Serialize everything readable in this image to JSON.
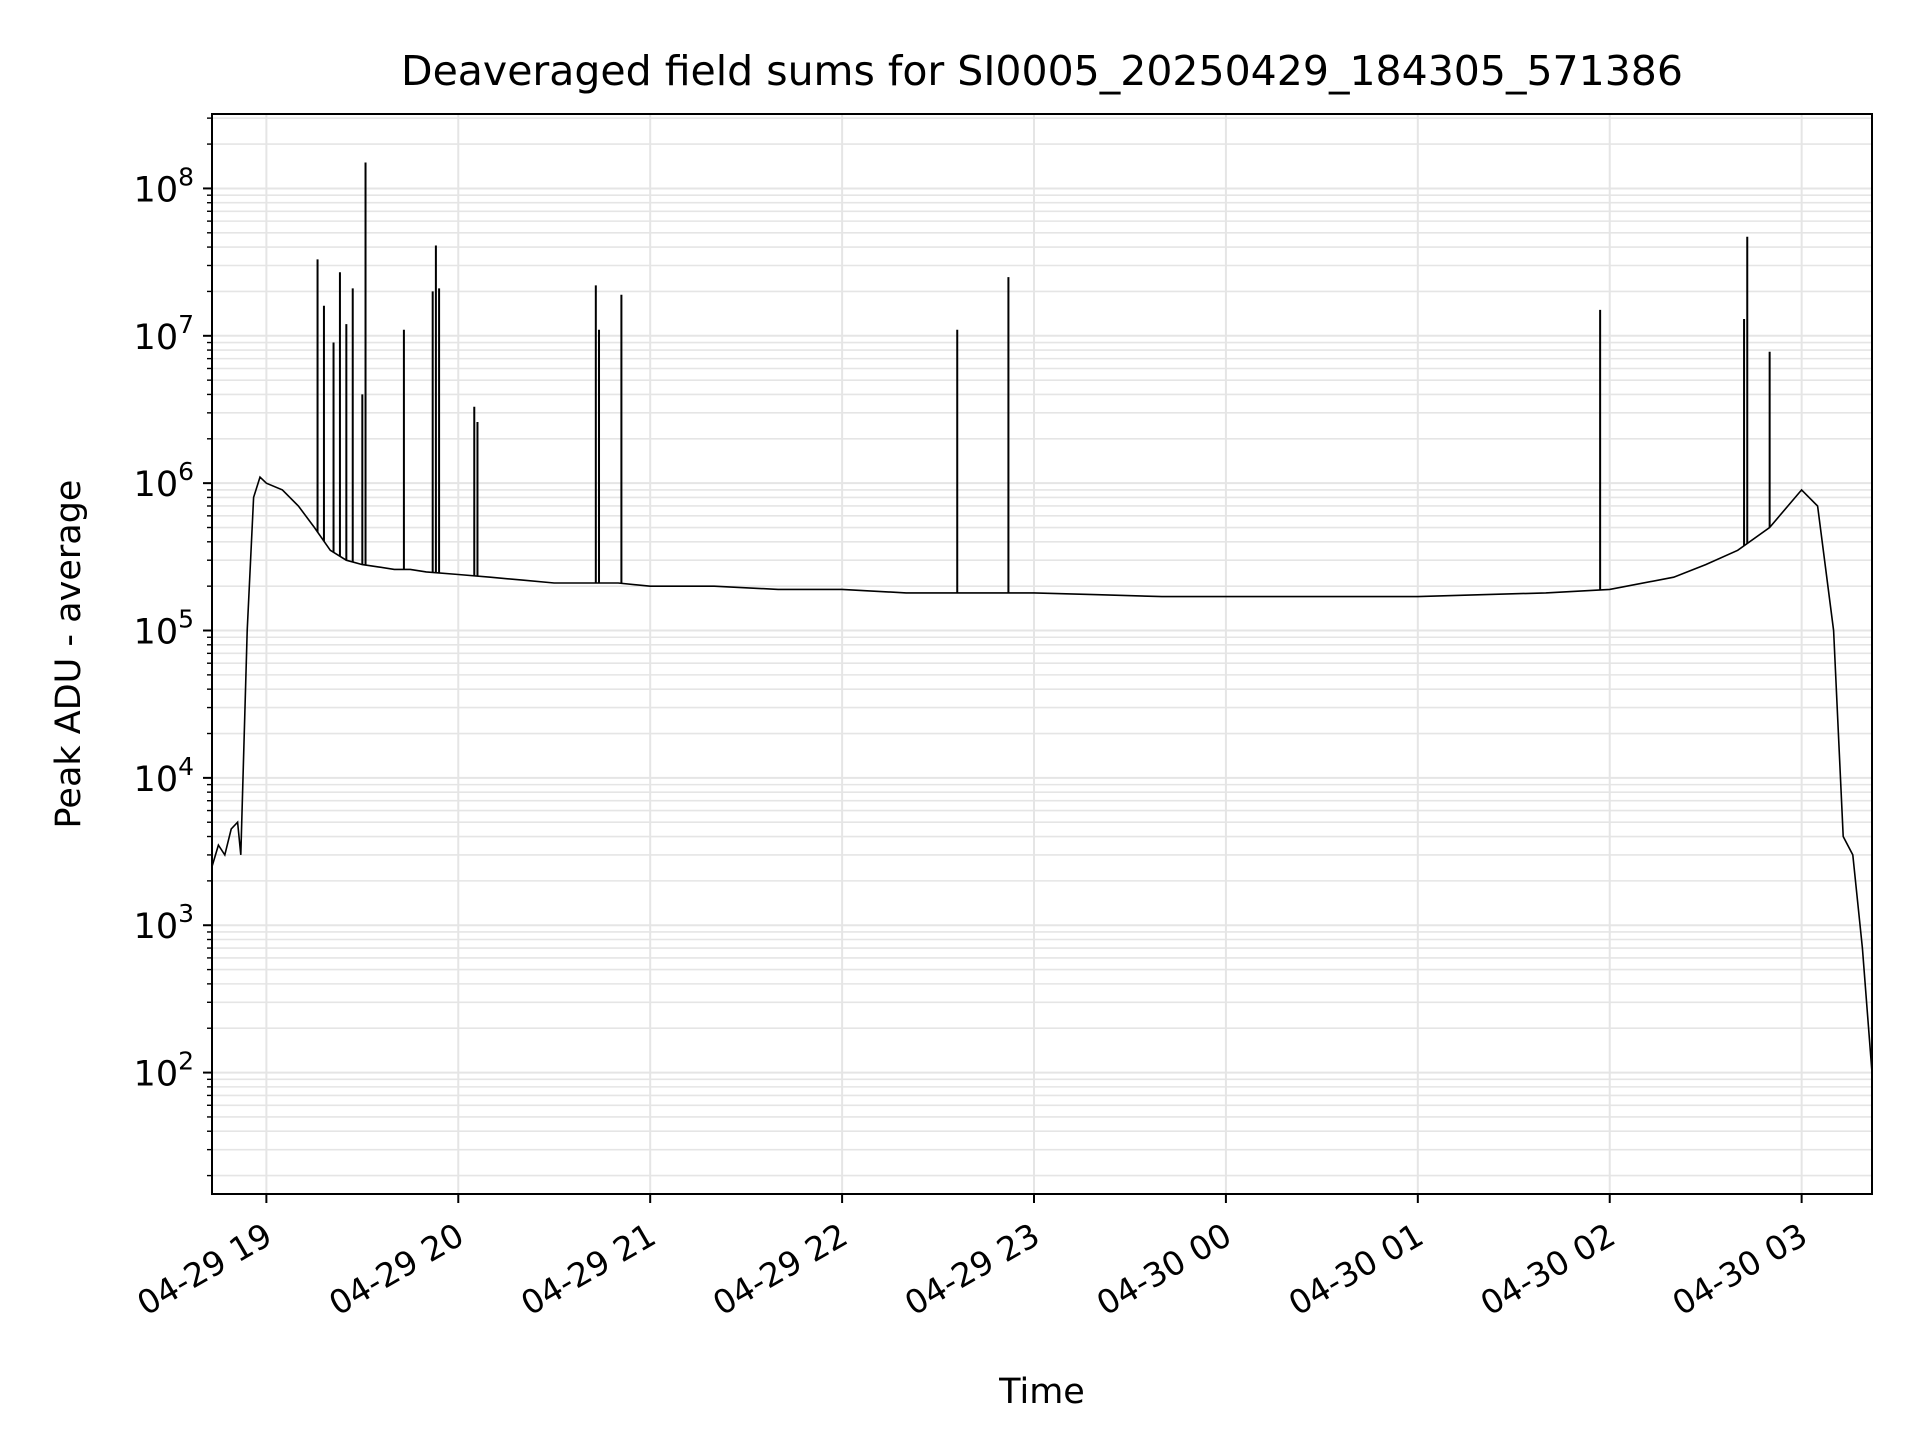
{
  "chart_data": {
    "type": "line",
    "title": "Deaveraged field sums for SI0005_20250429_184305_571386",
    "xlabel": "Time",
    "ylabel": "Peak ADU - average",
    "x_scale": "time",
    "y_scale": "log",
    "xlim": [
      "2025-04-29 18:43",
      "2025-04-30 03:22"
    ],
    "ylim": [
      15,
      320000000
    ],
    "grid": true,
    "line_color": "#000000",
    "grid_color": "#e5e5e5",
    "x_ticks": [
      {
        "t": "2025-04-29 19:00",
        "label": "04-29 19"
      },
      {
        "t": "2025-04-29 20:00",
        "label": "04-29 20"
      },
      {
        "t": "2025-04-29 21:00",
        "label": "04-29 21"
      },
      {
        "t": "2025-04-29 22:00",
        "label": "04-29 22"
      },
      {
        "t": "2025-04-29 23:00",
        "label": "04-29 23"
      },
      {
        "t": "2025-04-30 00:00",
        "label": "04-30 00"
      },
      {
        "t": "2025-04-30 01:00",
        "label": "04-30 01"
      },
      {
        "t": "2025-04-30 02:00",
        "label": "04-30 02"
      },
      {
        "t": "2025-04-30 03:00",
        "label": "04-30 03"
      }
    ],
    "y_ticks": [
      {
        "value": 100,
        "base": "10",
        "exp": "2"
      },
      {
        "value": 1000,
        "base": "10",
        "exp": "3"
      },
      {
        "value": 10000,
        "base": "10",
        "exp": "4"
      },
      {
        "value": 100000,
        "base": "10",
        "exp": "5"
      },
      {
        "value": 1000000,
        "base": "10",
        "exp": "6"
      },
      {
        "value": 10000000,
        "base": "10",
        "exp": "7"
      },
      {
        "value": 100000000,
        "base": "10",
        "exp": "8"
      }
    ],
    "series": [
      {
        "x": [
          "2025-04-29 18:43",
          "2025-04-29 18:45",
          "2025-04-29 18:47",
          "2025-04-29 18:49",
          "2025-04-29 18:51",
          "2025-04-29 18:52",
          "2025-04-29 18:54",
          "2025-04-29 18:56",
          "2025-04-29 18:58",
          "2025-04-29 19:00",
          "2025-04-29 19:05",
          "2025-04-29 19:10",
          "2025-04-29 19:15",
          "2025-04-29 19:20",
          "2025-04-29 19:25",
          "2025-04-29 19:30",
          "2025-04-29 19:35",
          "2025-04-29 19:40",
          "2025-04-29 19:45",
          "2025-04-29 19:50",
          "2025-04-29 20:00",
          "2025-04-29 20:10",
          "2025-04-29 20:20",
          "2025-04-29 20:30",
          "2025-04-29 20:40",
          "2025-04-29 20:50",
          "2025-04-29 21:00",
          "2025-04-29 21:20",
          "2025-04-29 21:40",
          "2025-04-29 22:00",
          "2025-04-29 22:20",
          "2025-04-29 22:40",
          "2025-04-29 23:00",
          "2025-04-29 23:20",
          "2025-04-29 23:40",
          "2025-04-30 00:00",
          "2025-04-30 00:20",
          "2025-04-30 00:40",
          "2025-04-30 01:00",
          "2025-04-30 01:20",
          "2025-04-30 01:40",
          "2025-04-30 02:00",
          "2025-04-30 02:20",
          "2025-04-30 02:30",
          "2025-04-30 02:40",
          "2025-04-30 02:50",
          "2025-04-30 03:00",
          "2025-04-30 03:05",
          "2025-04-30 03:10",
          "2025-04-30 03:13",
          "2025-04-30 03:16",
          "2025-04-30 03:19",
          "2025-04-30 03:22"
        ],
        "y": [
          2500,
          3500,
          3000,
          4500,
          5000,
          3000,
          100000,
          800000,
          1100000,
          1000000,
          900000,
          700000,
          500000,
          350000,
          300000,
          280000,
          270000,
          260000,
          260000,
          250000,
          240000,
          230000,
          220000,
          210000,
          210000,
          210000,
          200000,
          200000,
          190000,
          190000,
          180000,
          180000,
          180000,
          175000,
          170000,
          170000,
          170000,
          170000,
          170000,
          175000,
          180000,
          190000,
          230000,
          280000,
          350000,
          500000,
          900000,
          700000,
          100000,
          4000,
          3000,
          700,
          100
        ]
      }
    ],
    "spikes": [
      {
        "x": "2025-04-29 19:16",
        "y": 33000000
      },
      {
        "x": "2025-04-29 19:18",
        "y": 16000000
      },
      {
        "x": "2025-04-29 19:21",
        "y": 9000000
      },
      {
        "x": "2025-04-29 19:23",
        "y": 27000000
      },
      {
        "x": "2025-04-29 19:25",
        "y": 12000000
      },
      {
        "x": "2025-04-29 19:27",
        "y": 21000000
      },
      {
        "x": "2025-04-29 19:30",
        "y": 4000000
      },
      {
        "x": "2025-04-29 19:31",
        "y": 150000000
      },
      {
        "x": "2025-04-29 19:43",
        "y": 11000000
      },
      {
        "x": "2025-04-29 19:52",
        "y": 20000000
      },
      {
        "x": "2025-04-29 19:53",
        "y": 41000000
      },
      {
        "x": "2025-04-29 19:54",
        "y": 21000000
      },
      {
        "x": "2025-04-29 20:05",
        "y": 3300000
      },
      {
        "x": "2025-04-29 20:06",
        "y": 2600000
      },
      {
        "x": "2025-04-29 20:43",
        "y": 22000000
      },
      {
        "x": "2025-04-29 20:44",
        "y": 11000000
      },
      {
        "x": "2025-04-29 20:51",
        "y": 19000000
      },
      {
        "x": "2025-04-29 22:36",
        "y": 11000000
      },
      {
        "x": "2025-04-29 22:52",
        "y": 25000000
      },
      {
        "x": "2025-04-30 01:57",
        "y": 15000000
      },
      {
        "x": "2025-04-30 02:42",
        "y": 13000000
      },
      {
        "x": "2025-04-30 02:43",
        "y": 47000000
      },
      {
        "x": "2025-04-30 02:50",
        "y": 7800000
      }
    ]
  }
}
